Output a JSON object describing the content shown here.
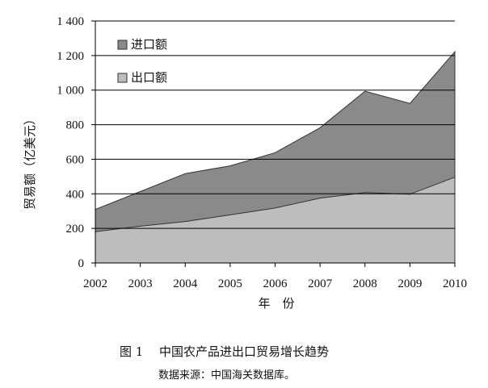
{
  "chart_data": {
    "type": "area",
    "x": [
      "2002",
      "2003",
      "2004",
      "2005",
      "2006",
      "2007",
      "2008",
      "2009",
      "2010"
    ],
    "series": [
      {
        "name": "出口额",
        "values": [
          181,
          213,
          240,
          278,
          318,
          375,
          407,
          398,
          496
        ],
        "color": "#bdbdbd"
      },
      {
        "name": "进口额",
        "values": [
          310,
          413,
          517,
          562,
          638,
          782,
          994,
          923,
          1222
        ],
        "color": "#8a8a8a"
      }
    ],
    "ylabel": "贸易额（亿美元）",
    "xlabel": "年　份",
    "ylim": [
      0,
      1400
    ],
    "yticks": [
      0,
      200,
      400,
      600,
      800,
      1000,
      1200,
      1400
    ],
    "ytick_labels": [
      "0",
      "200",
      "400",
      "600",
      "800",
      "1 000",
      "1 200",
      "1 400"
    ],
    "grid": true,
    "legend_position": "top-left",
    "legend": [
      {
        "label": "进口额",
        "color": "#8a8a8a"
      },
      {
        "label": "出口额",
        "color": "#bdbdbd"
      }
    ]
  },
  "caption": {
    "label": "图 1",
    "title": "中国农产品进出口贸易增长趋势",
    "source": "数据来源：中国海关数据库。"
  }
}
